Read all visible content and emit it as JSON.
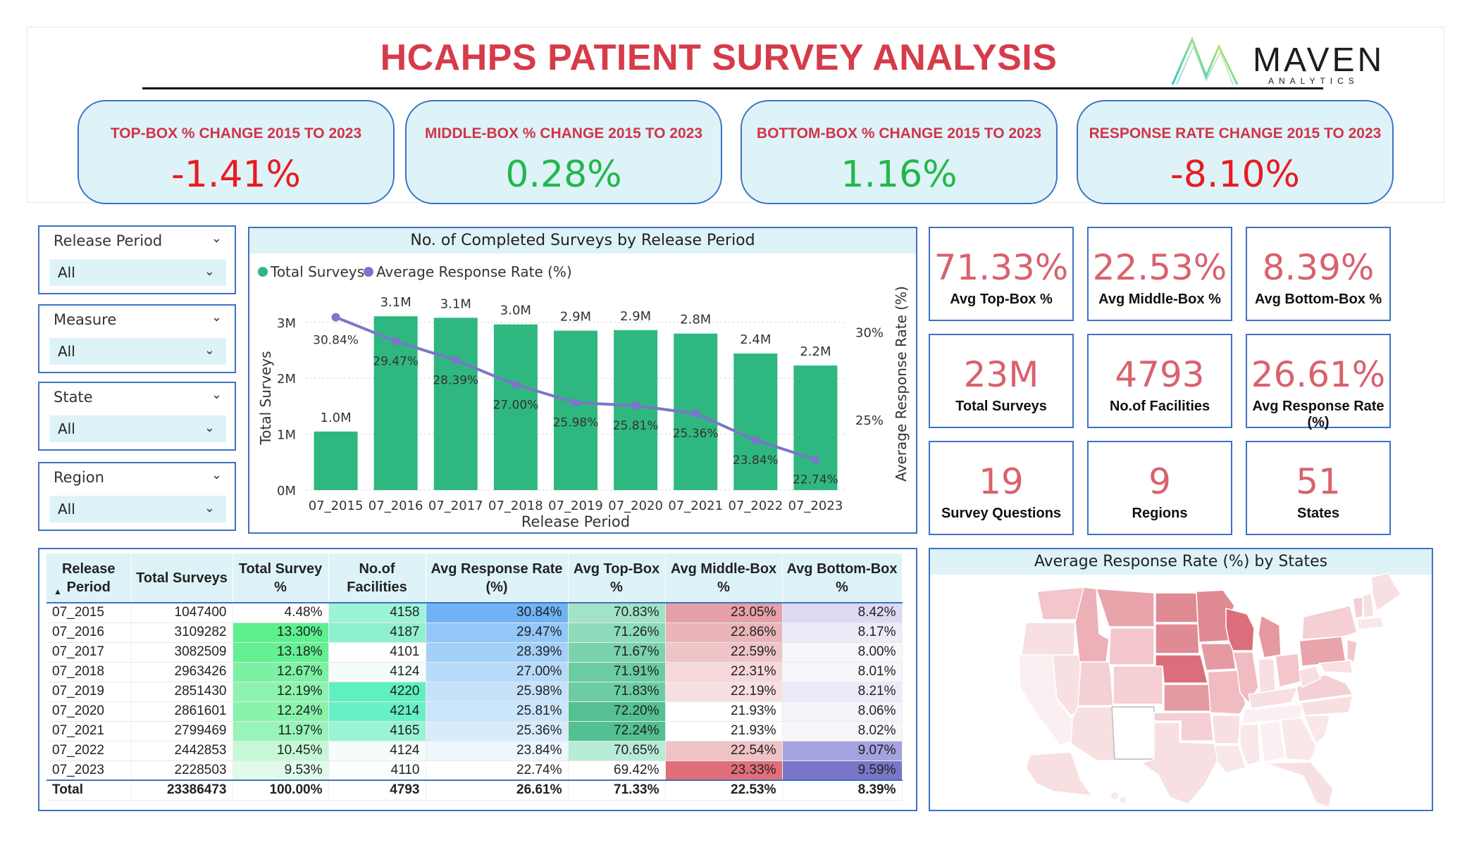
{
  "title": "HCAHPS PATIENT SURVEY ANALYSIS",
  "logo": {
    "word": "MAVEN",
    "sub": "ANALYTICS"
  },
  "kpis": [
    {
      "label": "TOP-BOX % CHANGE 2015 TO 2023",
      "value": "-1.41%",
      "tone": "neg"
    },
    {
      "label": "MIDDLE-BOX % CHANGE 2015 TO 2023",
      "value": "0.28%",
      "tone": "pos"
    },
    {
      "label": "BOTTOM-BOX % CHANGE 2015 TO 2023",
      "value": "1.16%",
      "tone": "pos"
    },
    {
      "label": "RESPONSE RATE CHANGE 2015 TO 2023",
      "value": "-8.10%",
      "tone": "neg"
    }
  ],
  "slicers": [
    {
      "title": "Release Period",
      "value": "All"
    },
    {
      "title": "Measure",
      "value": "All"
    },
    {
      "title": "State",
      "value": "All"
    },
    {
      "title": "Region",
      "value": "All"
    }
  ],
  "chart_data": {
    "type": "bar",
    "title": "No. of Completed Surveys by Release Period",
    "categories": [
      "07_2015",
      "07_2016",
      "07_2017",
      "07_2018",
      "07_2019",
      "07_2020",
      "07_2021",
      "07_2022",
      "07_2023"
    ],
    "series": [
      {
        "name": "Total Surveys",
        "type": "bar",
        "color": "#2eb87f",
        "values": [
          1047400,
          3109282,
          3082509,
          2963426,
          2851430,
          2861601,
          2799469,
          2442853,
          2228503
        ],
        "labels": [
          "1.0M",
          "3.1M",
          "3.1M",
          "3.0M",
          "2.9M",
          "2.9M",
          "2.8M",
          "2.4M",
          "2.2M"
        ]
      },
      {
        "name": "Average Response Rate (%)",
        "type": "line",
        "color": "#7b76c8",
        "values": [
          30.84,
          29.47,
          28.39,
          27.0,
          25.98,
          25.81,
          25.36,
          23.84,
          22.74
        ],
        "labels": [
          "30.84%",
          "29.47%",
          "28.39%",
          "27.00%",
          "25.98%",
          "25.81%",
          "25.36%",
          "23.84%",
          "22.74%"
        ]
      }
    ],
    "xlabel": "Release Period",
    "ylabel": "Total Surveys",
    "y2label": "Average Response Rate (%)",
    "ylim": [
      0,
      3300000
    ],
    "y2lim": [
      21.0,
      31.5
    ],
    "yticks": [
      0,
      1000000,
      2000000,
      3000000
    ],
    "yticklabels": [
      "0M",
      "1M",
      "2M",
      "3M"
    ],
    "y2ticks": [
      25,
      30
    ],
    "y2ticklabels": [
      "25%",
      "30%"
    ],
    "legend": "top-left"
  },
  "table": {
    "columns": [
      "Release Period",
      "Total Surveys",
      "Total Survey %",
      "No.of Facilities",
      "Avg Response Rate (%)",
      "Avg Top-Box %",
      "Avg Middle-Box %",
      "Avg Bottom-Box %"
    ],
    "rows": [
      [
        "07_2015",
        "1047400",
        "4.48%",
        "4158",
        "30.84%",
        "70.83%",
        "23.05%",
        "8.42%"
      ],
      [
        "07_2016",
        "3109282",
        "13.30%",
        "4187",
        "29.47%",
        "71.26%",
        "22.86%",
        "8.17%"
      ],
      [
        "07_2017",
        "3082509",
        "13.18%",
        "4101",
        "28.39%",
        "71.67%",
        "22.59%",
        "8.00%"
      ],
      [
        "07_2018",
        "2963426",
        "12.67%",
        "4124",
        "27.00%",
        "71.91%",
        "22.31%",
        "8.01%"
      ],
      [
        "07_2019",
        "2851430",
        "12.19%",
        "4220",
        "25.98%",
        "71.83%",
        "22.19%",
        "8.21%"
      ],
      [
        "07_2020",
        "2861601",
        "12.24%",
        "4214",
        "25.81%",
        "72.20%",
        "21.93%",
        "8.06%"
      ],
      [
        "07_2021",
        "2799469",
        "11.97%",
        "4165",
        "25.36%",
        "72.24%",
        "21.93%",
        "8.02%"
      ],
      [
        "07_2022",
        "2442853",
        "10.45%",
        "4124",
        "23.84%",
        "70.65%",
        "22.54%",
        "9.07%"
      ],
      [
        "07_2023",
        "2228503",
        "9.53%",
        "4110",
        "22.74%",
        "69.42%",
        "23.33%",
        "9.59%"
      ]
    ],
    "total": [
      "Total",
      "23386473",
      "100.00%",
      "4793",
      "26.61%",
      "71.33%",
      "22.53%",
      "8.39%"
    ],
    "cell_colors": [
      [
        "#ffffff",
        "#ffffff",
        "#ffffff",
        "#9df3d5",
        "#6fb3f5",
        "#a2e3c8",
        "#e6a0a7",
        "#dcdaf3"
      ],
      [
        "#ffffff",
        "#ffffff",
        "#5df08f",
        "#8ff0d0",
        "#92c7f8",
        "#8ddbbb",
        "#eab5b9",
        "#ecebf8"
      ],
      [
        "#ffffff",
        "#ffffff",
        "#62f093",
        "#ffffff",
        "#a3d0f8",
        "#7bd3ae",
        "#efc4c7",
        "#f7f7fb"
      ],
      [
        "#ffffff",
        "#ffffff",
        "#7bf2a3",
        "#f4fdf9",
        "#b6daf9",
        "#6bcba2",
        "#f6d8da",
        "#f7f7fb"
      ],
      [
        "#ffffff",
        "#ffffff",
        "#8cf3ae",
        "#5ff0c2",
        "#c5e2fa",
        "#6ccda4",
        "#f8e0e2",
        "#ebeaf8"
      ],
      [
        "#ffffff",
        "#ffffff",
        "#89f3ac",
        "#66f0c6",
        "#cbe5fb",
        "#55c193",
        "#ffffff",
        "#f4f4fb"
      ],
      [
        "#ffffff",
        "#ffffff",
        "#98f4b7",
        "#9af3d3",
        "#d7ebfb",
        "#52c090",
        "#ffffff",
        "#f6f6fb"
      ],
      [
        "#ffffff",
        "#ffffff",
        "#c6f8d7",
        "#f4fdf9",
        "#eef6fe",
        "#b8ebd5",
        "#efc2c6",
        "#a5a2e0"
      ],
      [
        "#ffffff",
        "#ffffff",
        "#e0fbe9",
        "#fafefc",
        "#ffffff",
        "#ffffff",
        "#e06f79",
        "#7a76c7"
      ]
    ]
  },
  "cards": [
    {
      "value": "71.33%",
      "label": "Avg Top-Box %"
    },
    {
      "value": "22.53%",
      "label": "Avg Middle-Box %"
    },
    {
      "value": "8.39%",
      "label": "Avg Bottom-Box %"
    },
    {
      "value": "23M",
      "label": "Total Surveys"
    },
    {
      "value": "4793",
      "label": "No.of Facilities"
    },
    {
      "value": "26.61%",
      "label": "Avg Response Rate (%)"
    },
    {
      "value": "19",
      "label": "Survey Questions"
    },
    {
      "value": "9",
      "label": "Regions"
    },
    {
      "value": "51",
      "label": "States"
    }
  ],
  "map": {
    "title": "Average Response Rate (%) by States"
  }
}
